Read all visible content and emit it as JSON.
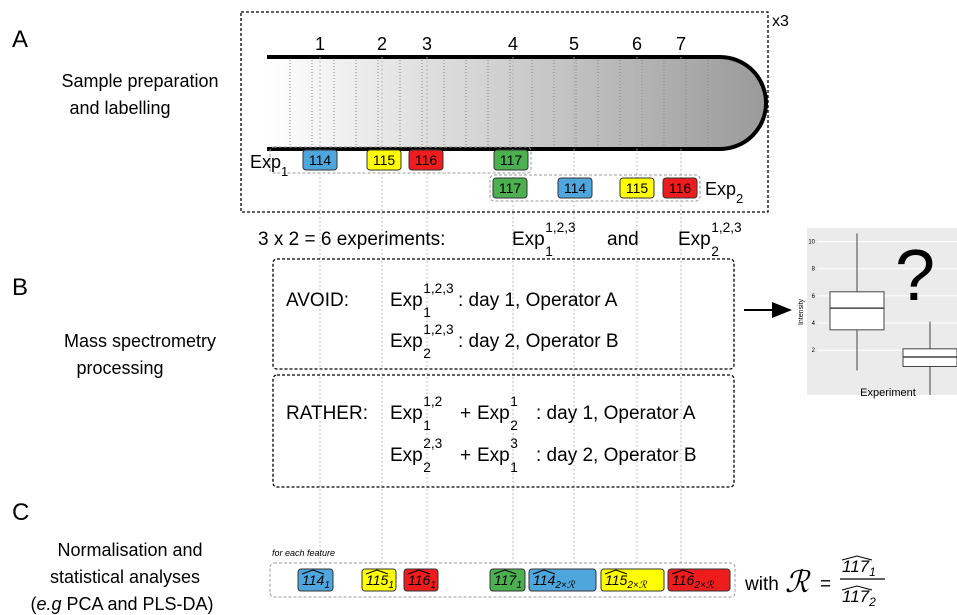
{
  "panels": {
    "A": {
      "letter": "A",
      "label": [
        "Sample preparation",
        "and labelling"
      ],
      "repeat": "x3",
      "fractions": [
        "1",
        "2",
        "3",
        "4",
        "5",
        "6",
        "7"
      ],
      "exp1": {
        "name": "Exp",
        "sub": "1",
        "tags": [
          {
            "label": "114",
            "color": "#4ea6dc"
          },
          {
            "label": "115",
            "color": "#ffff00"
          },
          {
            "label": "116",
            "color": "#ee1c1c"
          },
          {
            "label": "117",
            "color": "#4caf50"
          }
        ]
      },
      "exp2": {
        "name": "Exp",
        "sub": "2",
        "tags": [
          {
            "label": "117",
            "color": "#4caf50"
          },
          {
            "label": "114",
            "color": "#4ea6dc"
          },
          {
            "label": "115",
            "color": "#ffff00"
          },
          {
            "label": "116",
            "color": "#ee1c1c"
          }
        ]
      },
      "summary": {
        "text": "3 x 2 = 6 experiments:",
        "and": "and",
        "exp1": {
          "name": "Exp",
          "sub": "1",
          "sup": "1,2,3"
        },
        "exp2": {
          "name": "Exp",
          "sub": "2",
          "sup": "1,2,3"
        }
      }
    },
    "B": {
      "letter": "B",
      "label": [
        "Mass spectrometry",
        "processing"
      ],
      "avoid": {
        "label": "AVOID:",
        "rows": [
          {
            "terms": [
              {
                "name": "Exp",
                "sub": "1",
                "sup": "1,2,3"
              }
            ],
            "text": ": day 1, Operator A"
          },
          {
            "terms": [
              {
                "name": "Exp",
                "sub": "2",
                "sup": "1,2,3"
              }
            ],
            "text": ": day 2, Operator B"
          }
        ]
      },
      "rather": {
        "label": "RATHER:",
        "rows": [
          {
            "terms": [
              {
                "name": "Exp",
                "sub": "1",
                "sup": "1,2"
              },
              {
                "name": "Exp",
                "sub": "2",
                "sup": "1"
              }
            ],
            "plus": "+",
            "text": ": day 1, Operator A"
          },
          {
            "terms": [
              {
                "name": "Exp",
                "sub": "2",
                "sup": "2,3"
              },
              {
                "name": "Exp",
                "sub": "1",
                "sup": "3"
              }
            ],
            "plus": "+",
            "text": ": day 2, Operator B"
          }
        ]
      }
    },
    "C": {
      "letter": "C",
      "label": [
        "Normalisation and",
        "statistical analyses"
      ],
      "label3": {
        "open": "(",
        "italic": "e.g",
        "rest": " PCA and PLS-DA)"
      },
      "note": "for each feature",
      "tags": [
        {
          "label": "114",
          "sub": "1",
          "color": "#4ea6dc"
        },
        {
          "label": "115",
          "sub": "1",
          "color": "#ffff00"
        },
        {
          "label": "116",
          "sub": "1",
          "color": "#ee1c1c"
        },
        {
          "label": "117",
          "sub": "1",
          "color": "#4caf50"
        },
        {
          "label": "114",
          "sub": "2×ℛ",
          "color": "#4ea6dc"
        },
        {
          "label": "115",
          "sub": "2×ℛ",
          "color": "#ffff00"
        },
        {
          "label": "116",
          "sub": "2×ℛ",
          "color": "#ee1c1c"
        }
      ],
      "formula": {
        "with": "with",
        "symbol": "ℛ",
        "equals": "=",
        "numerator": {
          "label": "117",
          "sub": "1"
        },
        "denominator": {
          "label": "117",
          "sub": "2"
        }
      }
    }
  },
  "inset_plot": {
    "ylim": [
      -1.3,
      11
    ],
    "yticks": [
      2,
      4,
      6,
      8,
      10
    ],
    "ylabel": "Intensity",
    "xlabel": "Experiment",
    "mark": "?",
    "boxes": [
      {
        "low": 0.5,
        "q1": 3.5,
        "median": 5.1,
        "q3": 6.3,
        "high": 10.6
      },
      {
        "low": -1.3,
        "q1": 0.8,
        "median": 1.5,
        "q3": 2.1,
        "high": 4.1
      }
    ]
  }
}
